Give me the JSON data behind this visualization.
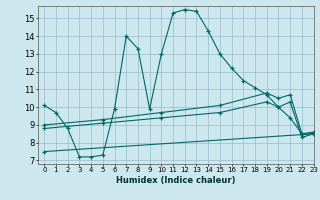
{
  "xlabel": "Humidex (Indice chaleur)",
  "bg_color": "#cce8ee",
  "grid_color": "#99bbcc",
  "line_color": "#006666",
  "xlim": [
    -0.5,
    23
  ],
  "ylim": [
    6.8,
    15.7
  ],
  "yticks": [
    7,
    8,
    9,
    10,
    11,
    12,
    13,
    14,
    15
  ],
  "xticks": [
    0,
    1,
    2,
    3,
    4,
    5,
    6,
    7,
    8,
    9,
    10,
    11,
    12,
    13,
    14,
    15,
    16,
    17,
    18,
    19,
    20,
    21,
    22,
    23
  ],
  "series1_x": [
    0,
    1,
    2,
    3,
    4,
    5,
    6,
    7,
    8,
    9,
    10,
    11,
    12,
    13,
    14,
    15,
    16,
    17,
    18,
    19,
    20,
    21,
    22,
    23
  ],
  "series1_y": [
    10.1,
    9.7,
    8.8,
    7.2,
    7.2,
    7.3,
    9.9,
    14.0,
    13.3,
    9.9,
    13.0,
    15.3,
    15.5,
    15.4,
    14.3,
    13.0,
    12.2,
    11.5,
    11.1,
    10.7,
    10.0,
    9.4,
    8.5,
    8.5
  ],
  "series2_x": [
    0,
    5,
    10,
    15,
    19,
    20,
    21,
    22,
    23
  ],
  "series2_y": [
    9.0,
    9.3,
    9.7,
    10.1,
    10.8,
    10.5,
    10.7,
    8.5,
    8.6
  ],
  "series3_x": [
    0,
    5,
    10,
    15,
    19,
    20,
    21,
    22,
    23
  ],
  "series3_y": [
    8.8,
    9.1,
    9.4,
    9.7,
    10.3,
    10.0,
    10.3,
    8.3,
    8.5
  ],
  "series4_x": [
    0,
    23
  ],
  "series4_y": [
    7.5,
    8.5
  ]
}
